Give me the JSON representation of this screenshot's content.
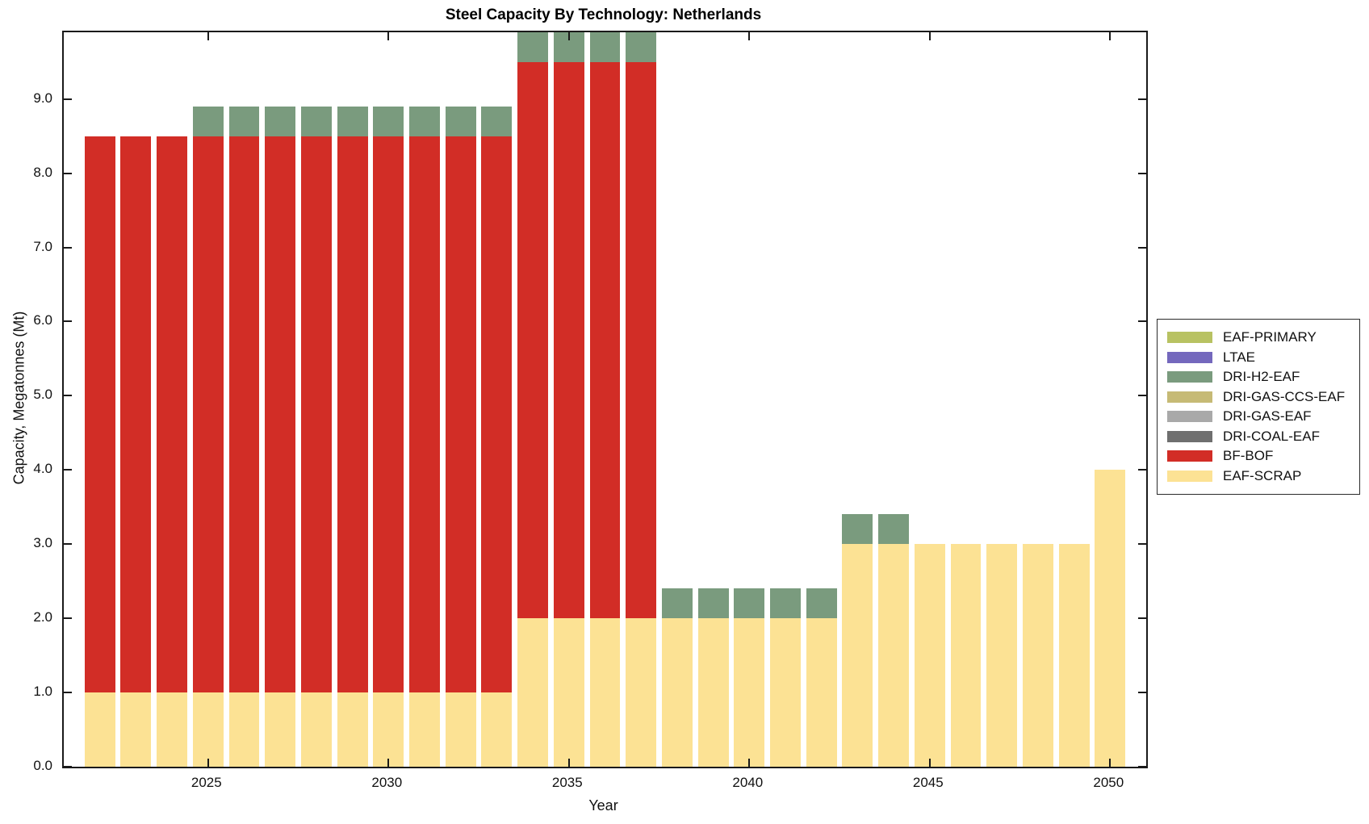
{
  "title": "Steel Capacity By Technology: Netherlands",
  "colors": {
    "axis": "#1a1a1a",
    "background": "#ffffff",
    "eaf_primary": "#b8c262",
    "ltae": "#7468bd",
    "dri_h2_eaf": "#7a9b7e",
    "dri_gas_ccs_eaf": "#c6ba75",
    "dri_gas_eaf": "#a9a9a9",
    "dri_coal_eaf": "#6f6f6f",
    "bf_bof": "#d22d26",
    "eaf_scrap": "#fce294"
  },
  "chart_data": {
    "type": "bar",
    "stacked": true,
    "title": "Steel Capacity By Technology: Netherlands",
    "xlabel": "Year",
    "ylabel": "Capacity, Megatonnes (Mt)",
    "xlim": [
      2021,
      2051
    ],
    "ylim": [
      0,
      9.9
    ],
    "yticks": [
      0,
      1,
      2,
      3,
      4,
      5,
      6,
      7,
      8,
      9
    ],
    "ytick_labels": [
      "0.0",
      "1.0",
      "2.0",
      "3.0",
      "4.0",
      "5.0",
      "6.0",
      "7.0",
      "8.0",
      "9.0"
    ],
    "xticks": [
      2025,
      2030,
      2035,
      2040,
      2045,
      2050
    ],
    "bar_width": 0.85,
    "grid": false,
    "legend_position": "right-outside",
    "x": [
      2022,
      2023,
      2024,
      2025,
      2026,
      2027,
      2028,
      2029,
      2030,
      2031,
      2032,
      2033,
      2034,
      2035,
      2036,
      2037,
      2038,
      2039,
      2040,
      2041,
      2042,
      2043,
      2044,
      2045,
      2046,
      2047,
      2048,
      2049,
      2050
    ],
    "series": [
      {
        "name": "EAF-SCRAP",
        "color": "#fce294",
        "values": [
          1,
          1,
          1,
          1,
          1,
          1,
          1,
          1,
          1,
          1,
          1,
          1,
          2,
          2,
          2,
          2,
          2,
          2,
          2,
          2,
          2,
          3,
          3,
          3,
          3,
          3,
          3,
          3,
          4
        ]
      },
      {
        "name": "BF-BOF",
        "color": "#d22d26",
        "values": [
          7.5,
          7.5,
          7.5,
          7.5,
          7.5,
          7.5,
          7.5,
          7.5,
          7.5,
          7.5,
          7.5,
          7.5,
          7.5,
          7.5,
          7.5,
          7.5,
          0,
          0,
          0,
          0,
          0,
          0,
          0,
          0,
          0,
          0,
          0,
          0,
          0
        ]
      },
      {
        "name": "DRI-H2-EAF",
        "color": "#7a9b7e",
        "values": [
          0,
          0,
          0,
          0.4,
          0.4,
          0.4,
          0.4,
          0.4,
          0.4,
          0.4,
          0.4,
          0.4,
          0.4,
          0.4,
          0.4,
          0.4,
          0.4,
          0.4,
          0.4,
          0.4,
          0.4,
          0.4,
          0.4,
          0,
          0,
          0,
          0,
          0,
          0
        ]
      }
    ],
    "bar_totals": [
      8.5,
      8.5,
      8.5,
      8.9,
      8.9,
      8.9,
      8.9,
      8.9,
      8.9,
      8.9,
      8.9,
      8.9,
      9.9,
      9.9,
      9.9,
      9.9,
      2.4,
      2.4,
      2.4,
      2.4,
      2.4,
      3.4,
      3.4,
      3,
      3,
      3,
      3,
      3,
      4
    ],
    "legend": [
      {
        "label": "EAF-PRIMARY",
        "color": "#b8c262"
      },
      {
        "label": "LTAE",
        "color": "#7468bd"
      },
      {
        "label": "DRI-H2-EAF",
        "color": "#7a9b7e"
      },
      {
        "label": "DRI-GAS-CCS-EAF",
        "color": "#c6ba75"
      },
      {
        "label": "DRI-GAS-EAF",
        "color": "#a9a9a9"
      },
      {
        "label": "DRI-COAL-EAF",
        "color": "#6f6f6f"
      },
      {
        "label": "BF-BOF",
        "color": "#d22d26"
      },
      {
        "label": "EAF-SCRAP",
        "color": "#fce294"
      }
    ]
  }
}
